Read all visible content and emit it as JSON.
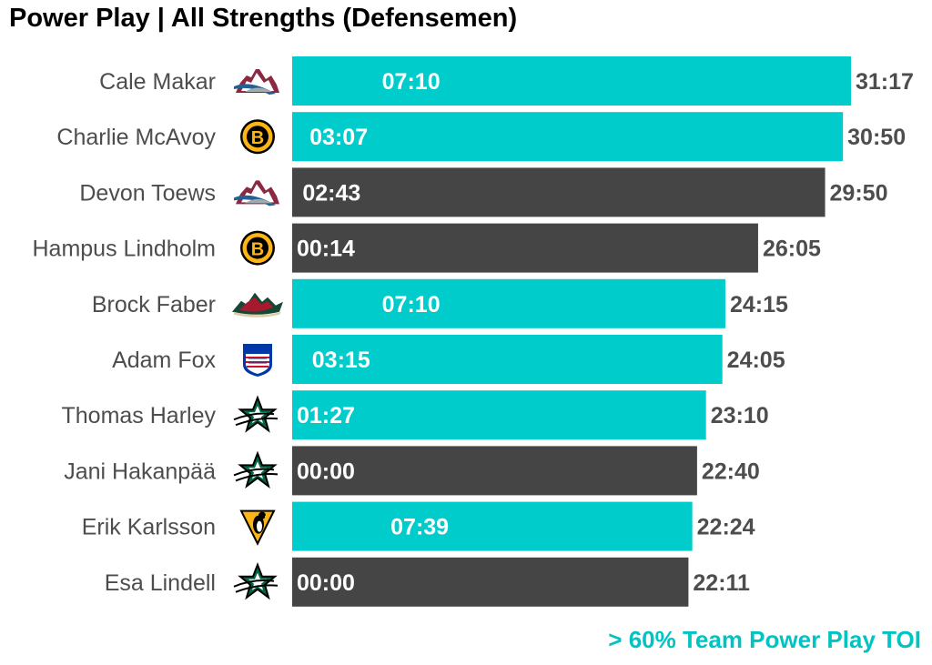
{
  "title": "Power Play | All Strengths (Defensemen)",
  "footnote": "> 60% Team Power Play TOI",
  "colors": {
    "highlight": "#00cccc",
    "normal": "#454545",
    "label": "#4d4d4d",
    "footnote": "#00c4c4"
  },
  "chart_data": {
    "type": "bar",
    "orientation": "horizontal",
    "categories": [
      "Cale Makar",
      "Charlie McAvoy",
      "Devon Toews",
      "Hampus Lindholm",
      "Brock Faber",
      "Adam Fox",
      "Thomas Harley",
      "Jani Hakanpää",
      "Erik Karlsson",
      "Esa Lindell"
    ],
    "teams": [
      "colorado-avalanche-logo",
      "boston-bruins-logo",
      "colorado-avalanche-logo",
      "boston-bruins-logo",
      "minnesota-wild-logo",
      "new-york-rangers-logo",
      "dallas-stars-logo",
      "dallas-stars-logo",
      "pittsburgh-penguins-logo",
      "dallas-stars-logo"
    ],
    "total_toi": [
      "31:17",
      "30:50",
      "29:50",
      "26:05",
      "24:15",
      "24:05",
      "23:10",
      "22:40",
      "22:24",
      "22:11"
    ],
    "pp_toi": [
      "07:10",
      "03:07",
      "02:43",
      "00:14",
      "07:10",
      "03:15",
      "01:27",
      "00:00",
      "07:39",
      "00:00"
    ],
    "highlighted": [
      true,
      true,
      false,
      false,
      true,
      true,
      true,
      false,
      true,
      false
    ],
    "xlim": [
      0,
      1877
    ]
  }
}
